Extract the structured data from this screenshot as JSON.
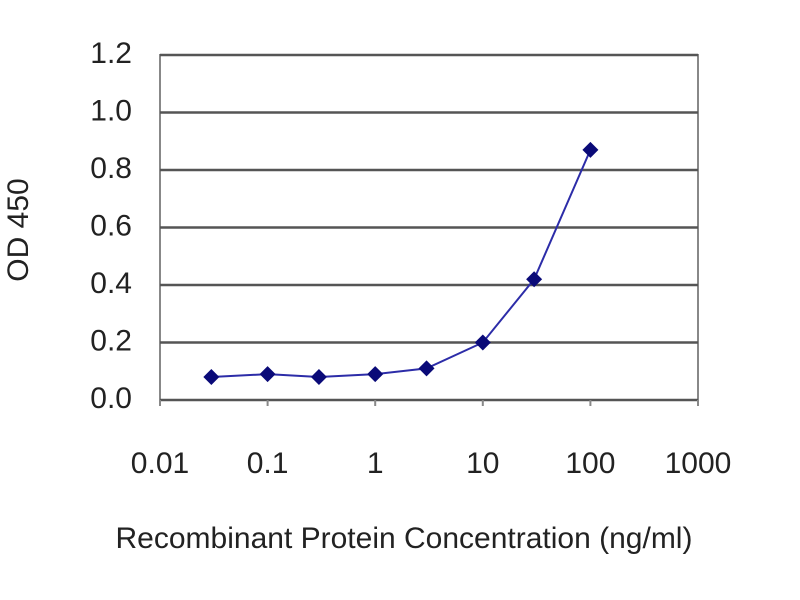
{
  "chart_data": {
    "type": "line",
    "x_label": "Recombinant Protein Concentration (ng/ml)",
    "y_label": "OD 450",
    "x": [
      0.03,
      0.1,
      0.3,
      1,
      3,
      10,
      30,
      100
    ],
    "series": [
      {
        "color": "#2c2ca8",
        "marker_color": "#0a0a78",
        "values": [
          0.08,
          0.09,
          0.08,
          0.09,
          0.11,
          0.2,
          0.42,
          0.87
        ]
      }
    ],
    "xscale": "log",
    "xlim": [
      0.01,
      1000
    ],
    "xticks": [
      0.01,
      0.1,
      1,
      10,
      100,
      1000
    ],
    "ylim": [
      0,
      1.2
    ],
    "yticks": [
      {
        "value": 0,
        "label": "0.0"
      },
      0.2,
      0.4,
      0.6,
      0.8,
      {
        "value": 1,
        "label": "1.0"
      },
      1.2
    ],
    "grid": true
  }
}
